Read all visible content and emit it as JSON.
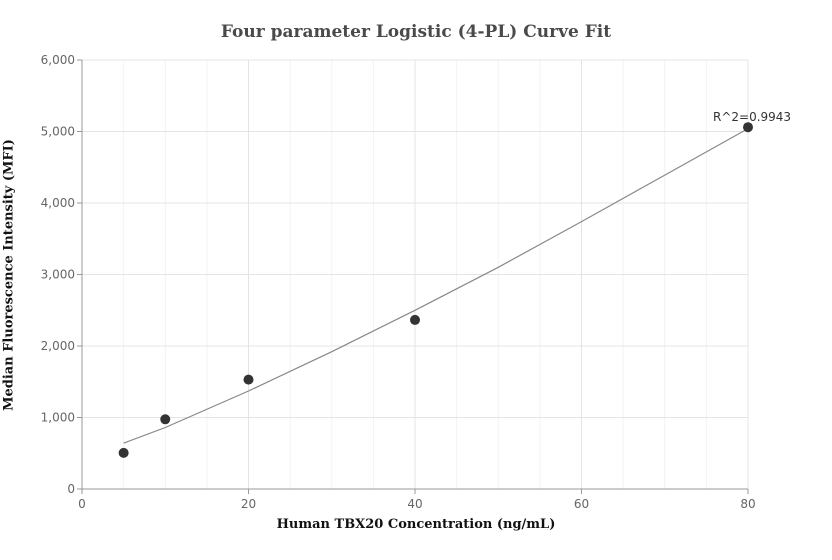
{
  "chart_data": {
    "type": "scatter",
    "title": "Four parameter Logistic (4-PL) Curve Fit",
    "xlabel": "Human TBX20 Concentration (ng/mL)",
    "ylabel": "Median Fluorescence Intensity (MFI)",
    "xlim": [
      0,
      80
    ],
    "ylim": [
      0,
      6000
    ],
    "x_ticks": [
      0,
      20,
      40,
      60,
      80
    ],
    "y_ticks": [
      0,
      1000,
      2000,
      3000,
      4000,
      5000,
      6000
    ],
    "x_tick_labels": [
      "0",
      "20",
      "40",
      "60",
      "80"
    ],
    "y_tick_labels": [
      "0",
      "1,000",
      "2,000",
      "3,000",
      "4,000",
      "5,000",
      "6,000"
    ],
    "grid": true,
    "series": [
      {
        "points": [
          {
            "x": 5,
            "y": 505
          },
          {
            "x": 10,
            "y": 975
          },
          {
            "x": 20,
            "y": 1530
          },
          {
            "x": 40,
            "y": 2365
          },
          {
            "x": 80,
            "y": 5060
          }
        ],
        "color": "#333333"
      }
    ],
    "fit_curve": {
      "x": [
        5,
        10,
        20,
        30,
        40,
        50,
        60,
        70,
        80
      ],
      "y": [
        640,
        860,
        1370,
        1920,
        2500,
        3100,
        3740,
        4390,
        5040
      ],
      "color": "#888888"
    },
    "annotation": {
      "text": "R^2=0.9943",
      "x": 80,
      "y": 5060
    }
  }
}
